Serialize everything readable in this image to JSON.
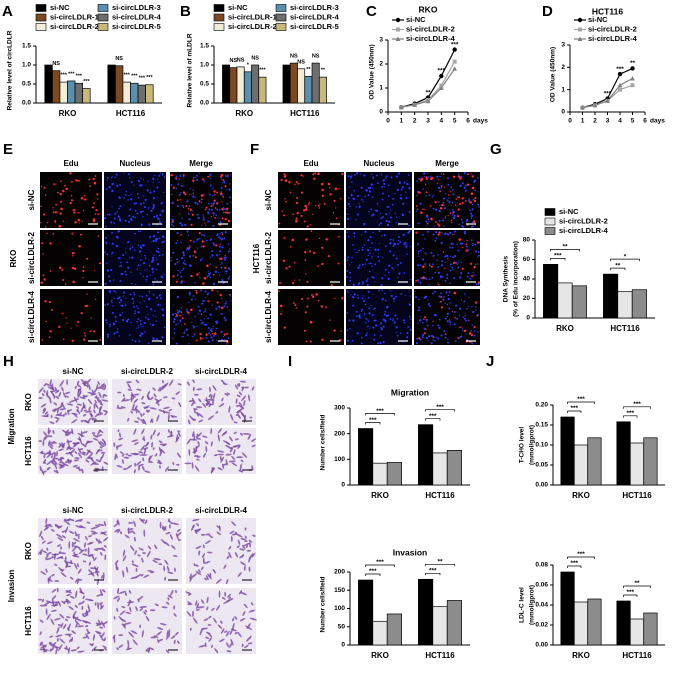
{
  "chart_data": [
    {
      "panel": "A",
      "type": "bar",
      "ylabel": "Relative level of circLDLR",
      "categories": [
        "RKO",
        "HCT116"
      ],
      "ylim": [
        0,
        1.5
      ],
      "yticks": [
        {
          "value": 0,
          "label": "0.0"
        },
        {
          "value": 0.5,
          "label": "0.5"
        },
        {
          "value": 1,
          "label": "1.0"
        },
        {
          "value": 1.5,
          "label": "1.5"
        }
      ],
      "legend_columns": 2,
      "series": [
        {
          "name": "si-NC",
          "color": "#000000",
          "values": [
            1.0,
            1.0
          ]
        },
        {
          "name": "si-circLDLR-1",
          "color": "#7b4a22",
          "values": [
            0.85,
            0.98
          ],
          "significance": [
            "NS",
            "NS"
          ]
        },
        {
          "name": "si-circLDLR-2",
          "color": "#f3ecd6",
          "values": [
            0.55,
            0.55
          ],
          "significance": [
            "***",
            "***"
          ]
        },
        {
          "name": "si-circLDLR-3",
          "color": "#5b8fae",
          "values": [
            0.58,
            0.52
          ],
          "significance": [
            "***",
            "***"
          ]
        },
        {
          "name": "si-circLDLR-4",
          "color": "#6e6e6e",
          "values": [
            0.52,
            0.47
          ],
          "significance": [
            "***",
            "***"
          ]
        },
        {
          "name": "si-circLDLR-5",
          "color": "#c9b87c",
          "values": [
            0.38,
            0.48
          ],
          "significance": [
            "***",
            "***"
          ]
        }
      ]
    },
    {
      "panel": "B",
      "type": "bar",
      "ylabel": "Relative level of mLDLR",
      "categories": [
        "RKO",
        "HCT116"
      ],
      "ylim": [
        0,
        1.5
      ],
      "yticks": [
        {
          "value": 0,
          "label": "0.0"
        },
        {
          "value": 0.5,
          "label": "0.5"
        },
        {
          "value": 1,
          "label": "1.0"
        },
        {
          "value": 1.5,
          "label": "1.5"
        }
      ],
      "legend_columns": 2,
      "series": [
        {
          "name": "si-NC",
          "color": "#000000",
          "values": [
            1.0,
            1.0
          ]
        },
        {
          "name": "si-circLDLR-1",
          "color": "#7b4a22",
          "values": [
            0.93,
            1.05
          ],
          "significance": [
            "NS",
            "NS"
          ]
        },
        {
          "name": "si-circLDLR-2",
          "color": "#f3ecd6",
          "values": [
            0.95,
            0.9
          ],
          "significance": [
            "NS",
            "NS"
          ]
        },
        {
          "name": "si-circLDLR-3",
          "color": "#5b8fae",
          "values": [
            0.82,
            0.7
          ],
          "significance": [
            "*",
            "**"
          ]
        },
        {
          "name": "si-circLDLR-4",
          "color": "#6e6e6e",
          "values": [
            1.0,
            1.05
          ],
          "significance": [
            "NS",
            "NS"
          ]
        },
        {
          "name": "si-circLDLR-5",
          "color": "#c9b87c",
          "values": [
            0.68,
            0.68
          ],
          "significance": [
            "***",
            "**"
          ]
        }
      ]
    },
    {
      "panel": "C",
      "type": "line",
      "title": "RKO",
      "ylabel": "OD Value (450nm)",
      "xlabel": "days",
      "x": [
        1,
        2,
        3,
        4,
        5
      ],
      "xlim": [
        0,
        6
      ],
      "xticks": [
        0,
        1,
        2,
        3,
        4,
        5,
        6
      ],
      "ylim": [
        0,
        3
      ],
      "yticks": [
        0,
        1,
        2,
        3
      ],
      "significance": [
        null,
        null,
        "**",
        "***",
        "***"
      ],
      "series": [
        {
          "name": "si-NC",
          "color": "#000000",
          "marker": "circle",
          "values": [
            0.2,
            0.35,
            0.6,
            1.5,
            2.6
          ]
        },
        {
          "name": "si-circLDLR-2",
          "color": "#a6a6a6",
          "marker": "square",
          "values": [
            0.2,
            0.3,
            0.5,
            1.1,
            2.1
          ]
        },
        {
          "name": "si-circLDLR-4",
          "color": "#7f7f7f",
          "marker": "triangle",
          "values": [
            0.2,
            0.3,
            0.45,
            1.0,
            1.8
          ]
        }
      ]
    },
    {
      "panel": "D",
      "type": "line",
      "title": "HCT116",
      "ylabel": "OD Value (450nm)",
      "xlabel": "days",
      "x": [
        1,
        2,
        3,
        4,
        5
      ],
      "xlim": [
        0,
        6
      ],
      "xticks": [
        0,
        1,
        2,
        3,
        4,
        5,
        6
      ],
      "ylim": [
        0,
        3
      ],
      "yticks": [
        0,
        1,
        2,
        3
      ],
      "significance": [
        null,
        null,
        "***",
        "***",
        "**"
      ],
      "series": [
        {
          "name": "si-NC",
          "color": "#000000",
          "marker": "circle",
          "values": [
            0.2,
            0.35,
            0.6,
            1.7,
            1.95
          ]
        },
        {
          "name": "si-circLDLR-2",
          "color": "#a6a6a6",
          "marker": "square",
          "values": [
            0.2,
            0.3,
            0.5,
            1.0,
            1.2
          ]
        },
        {
          "name": "si-circLDLR-4",
          "color": "#7f7f7f",
          "marker": "triangle",
          "values": [
            0.2,
            0.3,
            0.5,
            1.2,
            1.5
          ]
        }
      ]
    },
    {
      "panel": "G",
      "type": "bar",
      "ylabel": [
        "DNA Synthesis",
        "(% of Edu incorporation)"
      ],
      "categories": [
        "RKO",
        "HCT116"
      ],
      "ylim": [
        0,
        80
      ],
      "yticks": [
        0,
        20,
        40,
        60,
        80
      ],
      "legend_columns": 1,
      "series": [
        {
          "name": "si-NC",
          "color": "#000000",
          "values": [
            55,
            45
          ]
        },
        {
          "name": "si-circLDLR-2",
          "color": "#e6e6e6",
          "values": [
            36,
            27
          ]
        },
        {
          "name": "si-circLDLR-4",
          "color": "#8c8c8c",
          "values": [
            33,
            29
          ]
        }
      ],
      "brackets": [
        [
          "**",
          "***"
        ],
        [
          "*",
          "**"
        ]
      ]
    },
    {
      "panel": "I",
      "type": "bar",
      "title": "Migration",
      "ylabel": "Number cells/field",
      "categories": [
        "RKO",
        "HCT116"
      ],
      "ylim": [
        0,
        300
      ],
      "yticks": [
        0,
        100,
        200,
        300
      ],
      "series": [
        {
          "color": "#000000",
          "values": [
            220,
            235
          ]
        },
        {
          "color": "#e6e6e6",
          "values": [
            85,
            125
          ]
        },
        {
          "color": "#8c8c8c",
          "values": [
            88,
            135
          ]
        }
      ],
      "brackets": [
        [
          "***",
          "***"
        ],
        [
          "***",
          "***"
        ]
      ]
    },
    {
      "type": "bar",
      "title": "Invasion",
      "ylabel": "Number cells/field",
      "categories": [
        "RKO",
        "HCT116"
      ],
      "ylim": [
        0,
        200
      ],
      "yticks": [
        0,
        50,
        100,
        150,
        200
      ],
      "series": [
        {
          "color": "#000000",
          "values": [
            178,
            180
          ]
        },
        {
          "color": "#e6e6e6",
          "values": [
            65,
            105
          ]
        },
        {
          "color": "#8c8c8c",
          "values": [
            85,
            122
          ]
        }
      ],
      "brackets": [
        [
          "***",
          "***"
        ],
        [
          "**",
          "***"
        ]
      ]
    },
    {
      "panel": "J",
      "type": "bar",
      "ylabel": [
        "T-CHO level",
        "(mmol/gprot)"
      ],
      "categories": [
        "RKO",
        "HCT116"
      ],
      "ylim": [
        0,
        0.2
      ],
      "yticks": [
        {
          "value": 0,
          "label": "0.00"
        },
        0.05,
        {
          "value": 0.1,
          "label": "0.10"
        },
        0.15,
        {
          "value": 0.2,
          "label": "0.20"
        }
      ],
      "series": [
        {
          "color": "#000000",
          "values": [
            0.17,
            0.158
          ]
        },
        {
          "color": "#e6e6e6",
          "values": [
            0.1,
            0.105
          ]
        },
        {
          "color": "#8c8c8c",
          "values": [
            0.118,
            0.118
          ]
        }
      ],
      "brackets": [
        [
          "***",
          "***"
        ],
        [
          "***",
          "***"
        ]
      ]
    },
    {
      "type": "bar",
      "ylabel": [
        "LDL-C level",
        "(mmol/gprot)"
      ],
      "categories": [
        "RKO",
        "HCT116"
      ],
      "ylim": [
        0,
        0.08
      ],
      "yticks": [
        {
          "value": 0,
          "label": "0.00"
        },
        0.02,
        0.04,
        0.06,
        0.08
      ],
      "series": [
        {
          "color": "#000000",
          "values": [
            0.073,
            0.044
          ]
        },
        {
          "color": "#e6e6e6",
          "values": [
            0.043,
            0.026
          ]
        },
        {
          "color": "#8c8c8c",
          "values": [
            0.046,
            0.032
          ]
        }
      ],
      "brackets": [
        [
          "***",
          "***"
        ],
        [
          "**",
          "***"
        ]
      ]
    }
  ],
  "figures": [
    {
      "panel": "E",
      "group": "RKO",
      "columns": [
        "Edu",
        "Nucleus",
        "Merge"
      ],
      "rows": [
        "si-NC",
        "si-circLDLR-2",
        "si-circLDLR-4"
      ]
    },
    {
      "panel": "F",
      "group": "HCT116",
      "columns": [
        "Edu",
        "Nucleus",
        "Merge"
      ],
      "rows": [
        "si-NC",
        "si-circLDLR-2",
        "si-circLDLR-4"
      ]
    },
    {
      "panel": "H",
      "sections": [
        {
          "label": "Migration",
          "columns": [
            "si-NC",
            "si-circLDLR-2",
            "si-circLDLR-4"
          ],
          "rows": [
            "RKO",
            "HCT116"
          ]
        },
        {
          "label": "Invasion",
          "columns": [
            "si-NC",
            "si-circLDLR-2",
            "si-circLDLR-4"
          ],
          "rows": [
            "RKO",
            "HCT116"
          ]
        }
      ]
    }
  ]
}
